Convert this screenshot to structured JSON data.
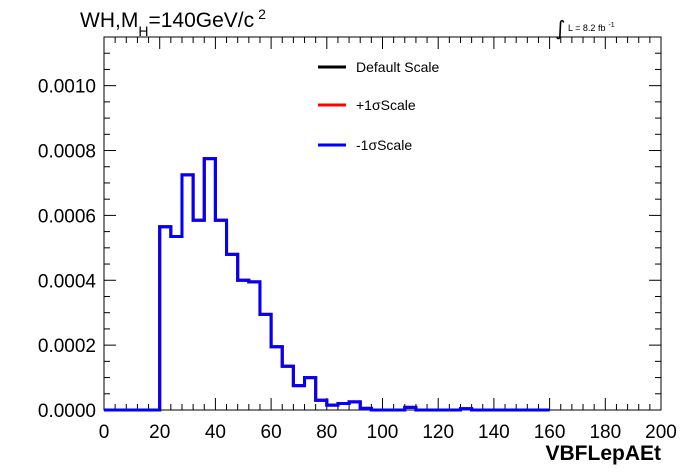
{
  "chart_data": {
    "type": "line",
    "title": {
      "prefix": "WH,M",
      "subscript": "H",
      "mid": "=140GeV/c",
      "superscript": "2"
    },
    "luminosity": {
      "integral_symbol": "∫",
      "text": "L = 8.2 fb",
      "superscript": "-1"
    },
    "xlabel": "VBFLepAEt",
    "ylabel": "",
    "xlim": [
      0,
      200
    ],
    "ylim": [
      0,
      0.00115
    ],
    "x_ticks": [
      "0",
      "20",
      "40",
      "60",
      "80",
      "100",
      "120",
      "140",
      "160",
      "180",
      "200"
    ],
    "y_ticks": [
      "0.0000",
      "0.0002",
      "0.0004",
      "0.0006",
      "0.0008",
      "0.0010"
    ],
    "grid": false,
    "legend_position": "top-center",
    "bin_width": 4,
    "series": [
      {
        "name": "Default Scale",
        "color": "#000000",
        "values": [
          0,
          0,
          0,
          0,
          0,
          0.000565,
          0.000535,
          0.000725,
          0.000585,
          0.000775,
          0.000585,
          0.00048,
          0.0004,
          0.000395,
          0.000295,
          0.000195,
          0.000135,
          7.5e-05,
          0.0001,
          3e-05,
          1.5e-05,
          2e-05,
          2.5e-05,
          5e-06,
          0,
          0,
          0,
          8e-06,
          0,
          0,
          0,
          0,
          4e-06,
          0,
          0,
          0,
          0,
          0,
          0,
          0
        ]
      },
      {
        "name": "+1σScale",
        "color": "#ff0000",
        "values": [
          0,
          0,
          0,
          0,
          0,
          0.000565,
          0.000535,
          0.000725,
          0.000585,
          0.000775,
          0.000585,
          0.00048,
          0.0004,
          0.000395,
          0.000295,
          0.000195,
          0.000135,
          7.5e-05,
          0.0001,
          3e-05,
          1.5e-05,
          2e-05,
          2.5e-05,
          5e-06,
          0,
          0,
          0,
          8e-06,
          0,
          0,
          0,
          0,
          4e-06,
          0,
          0,
          0,
          0,
          0,
          0,
          0
        ]
      },
      {
        "name": "-1σScale",
        "color": "#0000ff",
        "values": [
          0,
          0,
          0,
          0,
          0,
          0.000565,
          0.000535,
          0.000725,
          0.000585,
          0.000775,
          0.000585,
          0.00048,
          0.0004,
          0.000395,
          0.000295,
          0.000195,
          0.000135,
          7.5e-05,
          0.0001,
          3e-05,
          1.5e-05,
          2e-05,
          2.5e-05,
          5e-06,
          0,
          0,
          0,
          8e-06,
          0,
          0,
          0,
          0,
          4e-06,
          0,
          0,
          0,
          0,
          0,
          0,
          0
        ]
      }
    ]
  }
}
